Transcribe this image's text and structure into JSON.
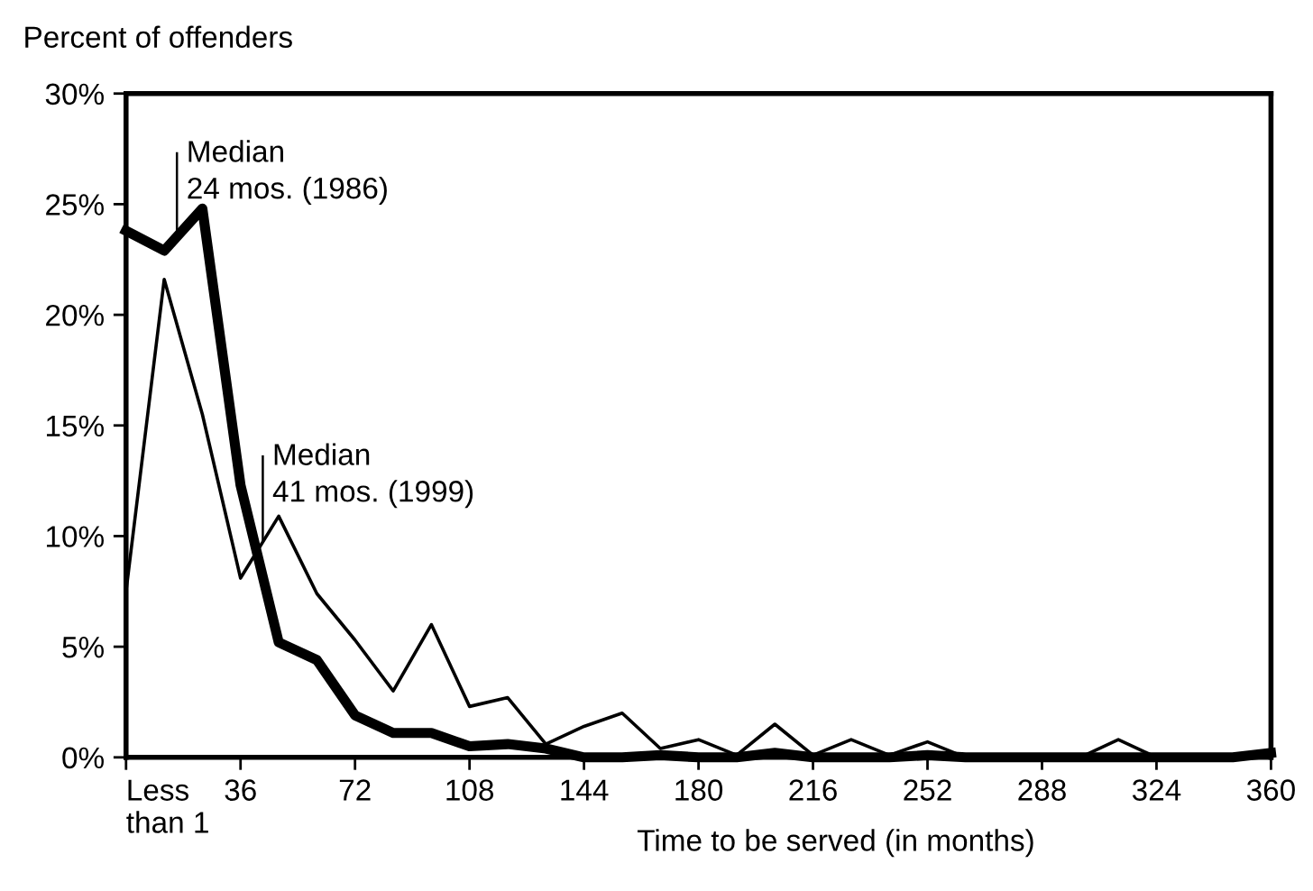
{
  "chart_data": {
    "type": "line",
    "ylabel": "Percent of offenders",
    "xlabel": "Time to be served (in months)",
    "x": [
      0,
      12,
      24,
      36,
      48,
      60,
      72,
      84,
      96,
      108,
      120,
      132,
      144,
      156,
      168,
      180,
      192,
      204,
      216,
      228,
      240,
      252,
      264,
      276,
      288,
      300,
      312,
      324,
      336,
      348,
      360
    ],
    "series": [
      {
        "color": "#000000",
        "values": [
          23.8,
          22.9,
          24.8,
          12.3,
          5.2,
          4.4,
          1.9,
          1.1,
          1.1,
          0.5,
          0.6,
          0.4,
          0,
          0,
          0.1,
          0,
          0,
          0.2,
          0,
          0,
          0,
          0.1,
          0,
          0,
          0,
          0,
          0,
          0,
          0,
          0,
          0.2
        ]
      },
      {
        "color": "#000000",
        "values": [
          7.5,
          21.6,
          15.5,
          8.1,
          10.9,
          7.4,
          5.3,
          3.0,
          6.0,
          2.3,
          2.7,
          0.6,
          1.4,
          2.0,
          0.4,
          0.8,
          0.1,
          1.5,
          0.1,
          0.8,
          0.1,
          0.7,
          0,
          0.1,
          0,
          0,
          0.8,
          0,
          0,
          0,
          0.1
        ]
      }
    ],
    "annotations": [
      {
        "text": "Median\n24 mos. (1986)",
        "x": 16,
        "y": 23.5
      },
      {
        "text": "Median\n41 mos. (1999)",
        "x": 43,
        "y": 9.8
      }
    ],
    "xlim": [
      0,
      360
    ],
    "ylim": [
      0,
      30
    ],
    "xticks": [
      {
        "value": 0,
        "label": "Less\nthan 1"
      },
      36,
      72,
      108,
      144,
      180,
      216,
      252,
      288,
      324,
      360
    ],
    "yticks": [
      {
        "value": 0,
        "label": "0%"
      },
      {
        "value": 5,
        "label": "5%"
      },
      {
        "value": 10,
        "label": "10%"
      },
      {
        "value": 15,
        "label": "15%"
      },
      {
        "value": 20,
        "label": "20%"
      },
      {
        "value": 25,
        "label": "25%"
      },
      {
        "value": 30,
        "label": "30%"
      }
    ],
    "grid": false,
    "legend": false,
    "marker": "none",
    "line_style": "solid"
  }
}
